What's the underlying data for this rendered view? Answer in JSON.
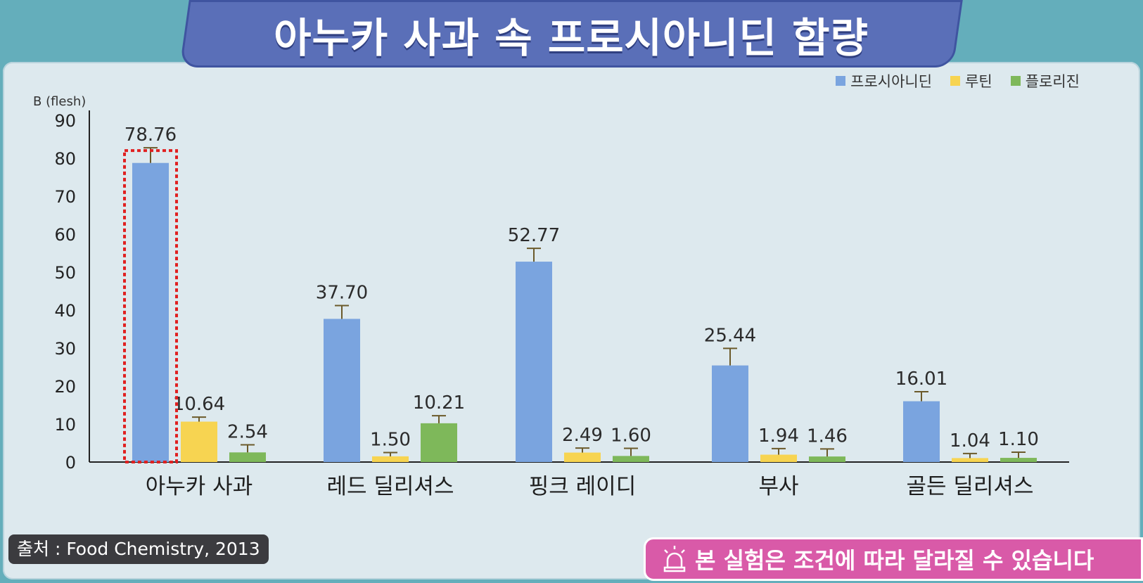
{
  "title": "아누카 사과 속 프로시아니딘 함량",
  "source_text": "출처 : Food Chemistry, 2013",
  "notice_text": "본 실험은 조건에 따라 달라질 수 있습니다",
  "colors": {
    "procyanidin": "#7aa4df",
    "rutin": "#f7d451",
    "phloridzin": "#7eb85a",
    "highlight": "#e02020"
  },
  "chart_data": {
    "type": "bar",
    "ylabel": "B (flesh)",
    "ylim": [
      0,
      90
    ],
    "yticks": [
      0,
      10,
      20,
      30,
      40,
      50,
      60,
      70,
      80,
      90
    ],
    "categories": [
      "아누카 사과",
      "레드 딜리셔스",
      "핑크 레이디",
      "부사",
      "골든 딜리셔스"
    ],
    "series": [
      {
        "name": "프로시아니딘",
        "values": [
          78.76,
          37.7,
          52.77,
          25.44,
          16.01
        ],
        "labels": [
          "78.76",
          "37.70",
          "52.77",
          "25.44",
          "16.01"
        ]
      },
      {
        "name": "루틴",
        "values": [
          10.64,
          1.5,
          2.49,
          1.94,
          1.04
        ],
        "labels": [
          "10.64",
          "1.50",
          "2.49",
          "1.94",
          "1.04"
        ]
      },
      {
        "name": "플로리진",
        "values": [
          2.54,
          10.21,
          1.6,
          1.46,
          1.1
        ],
        "labels": [
          "2.54",
          "10.21",
          "1.60",
          "1.46",
          "1.10"
        ]
      }
    ],
    "highlight_category": "아누카 사과",
    "legend_position": "top-right",
    "grid": false
  }
}
